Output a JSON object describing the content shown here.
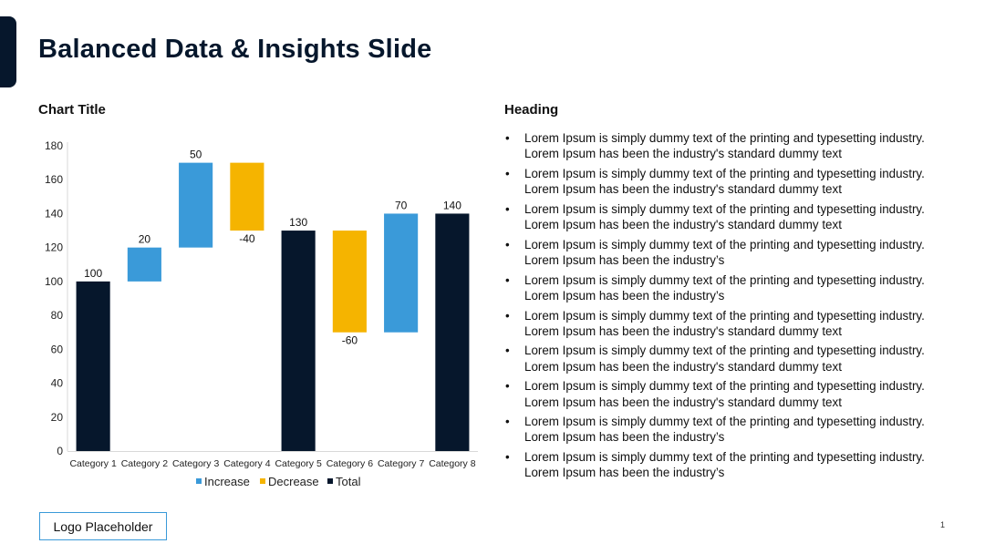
{
  "slide": {
    "title": "Balanced Data & Insights Slide",
    "heading": "Heading",
    "logo_placeholder": "Logo Placeholder",
    "page_number": "1"
  },
  "bullets": [
    "Lorem Ipsum is simply dummy text of the printing and typesetting industry. Lorem Ipsum has been the industry's standard dummy text",
    "Lorem Ipsum is simply dummy text of the printing and typesetting industry. Lorem Ipsum has been the industry's standard dummy text",
    "Lorem Ipsum is simply dummy text of the printing and typesetting industry. Lorem Ipsum has been the industry's standard dummy text",
    "Lorem Ipsum is simply dummy text of the printing and typesetting industry. Lorem Ipsum has been the industry’s",
    "Lorem Ipsum is simply dummy text of the printing and typesetting industry. Lorem Ipsum has been the industry’s",
    "Lorem Ipsum is simply dummy text of the printing and typesetting industry. Lorem Ipsum has been the industry's standard dummy text",
    "Lorem Ipsum is simply dummy text of the printing and typesetting industry. Lorem Ipsum has been the industry's standard dummy text",
    "Lorem Ipsum is simply dummy text of the printing and typesetting industry. Lorem Ipsum has been the industry's standard dummy text",
    "Lorem Ipsum is simply dummy text of the printing and typesetting industry. Lorem Ipsum has been the industry’s",
    "Lorem Ipsum is simply dummy text of the printing and typesetting industry. Lorem Ipsum has been the industry’s"
  ],
  "colors": {
    "increase": "#3a9ad9",
    "decrease": "#f5b400",
    "total": "#06172c"
  },
  "chart_data": {
    "type": "bar",
    "subtype": "waterfall",
    "title": "Chart Title",
    "categories": [
      "Category 1",
      "Category 2",
      "Category 3",
      "Category 4",
      "Category 5",
      "Category 6",
      "Category 7",
      "Category 8"
    ],
    "bars": [
      {
        "category": "Category 1",
        "kind": "total",
        "start": 0,
        "end": 100,
        "label": "100"
      },
      {
        "category": "Category 2",
        "kind": "increase",
        "start": 100,
        "end": 120,
        "label": "20"
      },
      {
        "category": "Category 3",
        "kind": "increase",
        "start": 120,
        "end": 170,
        "label": "50"
      },
      {
        "category": "Category 4",
        "kind": "decrease",
        "start": 170,
        "end": 130,
        "label": "-40"
      },
      {
        "category": "Category 5",
        "kind": "total",
        "start": 0,
        "end": 130,
        "label": "130"
      },
      {
        "category": "Category 6",
        "kind": "decrease",
        "start": 130,
        "end": 70,
        "label": "-60"
      },
      {
        "category": "Category 7",
        "kind": "increase",
        "start": 70,
        "end": 140,
        "label": "70"
      },
      {
        "category": "Category 8",
        "kind": "total",
        "start": 0,
        "end": 140,
        "label": "140"
      }
    ],
    "ylim": [
      0,
      180
    ],
    "yticks": [
      0,
      20,
      40,
      60,
      80,
      100,
      120,
      140,
      160,
      180
    ],
    "legend": [
      {
        "name": "Increase",
        "kind": "increase"
      },
      {
        "name": "Decrease",
        "kind": "decrease"
      },
      {
        "name": "Total",
        "kind": "total"
      }
    ],
    "legend_position": "bottom",
    "grid": false
  }
}
